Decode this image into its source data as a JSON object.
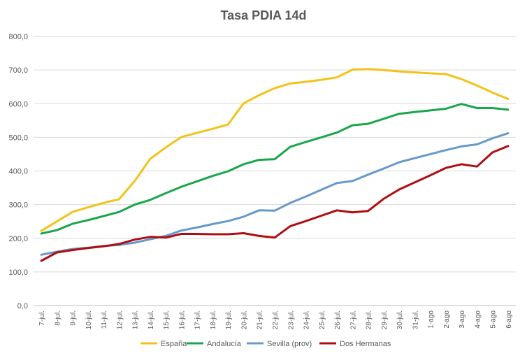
{
  "chart_data": {
    "type": "line",
    "title": "Tasa PDIA 14d",
    "xlabel": "",
    "ylabel": "",
    "ylim": [
      0,
      800
    ],
    "y_ticks": [
      "0,0",
      "100,0",
      "200,0",
      "300,0",
      "400,0",
      "500,0",
      "600,0",
      "700,0",
      "800,0"
    ],
    "grid": true,
    "legend_position": "bottom",
    "categories": [
      "7-jul.",
      "8-jul.",
      "9-jul.",
      "10-jul.",
      "11-jul.",
      "12-jul.",
      "13-jul.",
      "14-jul.",
      "15-jul.",
      "16-jul.",
      "17-jul.",
      "18-jul.",
      "19-jul.",
      "20-jul.",
      "21-jul.",
      "22-jul.",
      "23-jul.",
      "24-jul.",
      "25-jul.",
      "26-jul.",
      "27-jul.",
      "28-jul.",
      "29-jul.",
      "30-jul.",
      "31-jul.",
      "1-ago",
      "2-ago",
      "3-ago",
      "4-ago",
      "5-ago",
      "6-ago"
    ],
    "series": [
      {
        "name": "España",
        "color": "#F2C318",
        "values": [
          222,
          250,
          278,
          292,
          305,
          316,
          370,
          436,
          470,
          501,
          513,
          525,
          538,
          601,
          625,
          646,
          660,
          665,
          671,
          678,
          701,
          703,
          700,
          696,
          693,
          690,
          688,
          673,
          654,
          633,
          614
        ]
      },
      {
        "name": "Andalucía",
        "color": "#1AA64A",
        "values": [
          214,
          224,
          243,
          254,
          266,
          278,
          300,
          314,
          334,
          353,
          369,
          385,
          399,
          420,
          433,
          435,
          472,
          486,
          500,
          514,
          536,
          540,
          555,
          570,
          575,
          580,
          585,
          599,
          587,
          587,
          582
        ]
      },
      {
        "name": "Sevilla (prov)",
        "color": "#6699CC",
        "values": [
          151,
          160,
          168,
          172,
          177,
          180,
          187,
          197,
          207,
          223,
          232,
          242,
          251,
          264,
          283,
          282,
          305,
          324,
          344,
          364,
          370,
          389,
          407,
          426,
          438,
          450,
          462,
          473,
          479,
          497,
          512
        ]
      },
      {
        "name": "Dos Hermanas",
        "color": "#B00D12",
        "values": [
          133,
          158,
          165,
          171,
          176,
          183,
          196,
          204,
          202,
          213,
          213,
          212,
          212,
          215,
          207,
          202,
          236,
          251,
          267,
          283,
          277,
          281,
          317,
          345,
          366,
          387,
          409,
          420,
          413,
          455,
          474
        ]
      }
    ]
  }
}
